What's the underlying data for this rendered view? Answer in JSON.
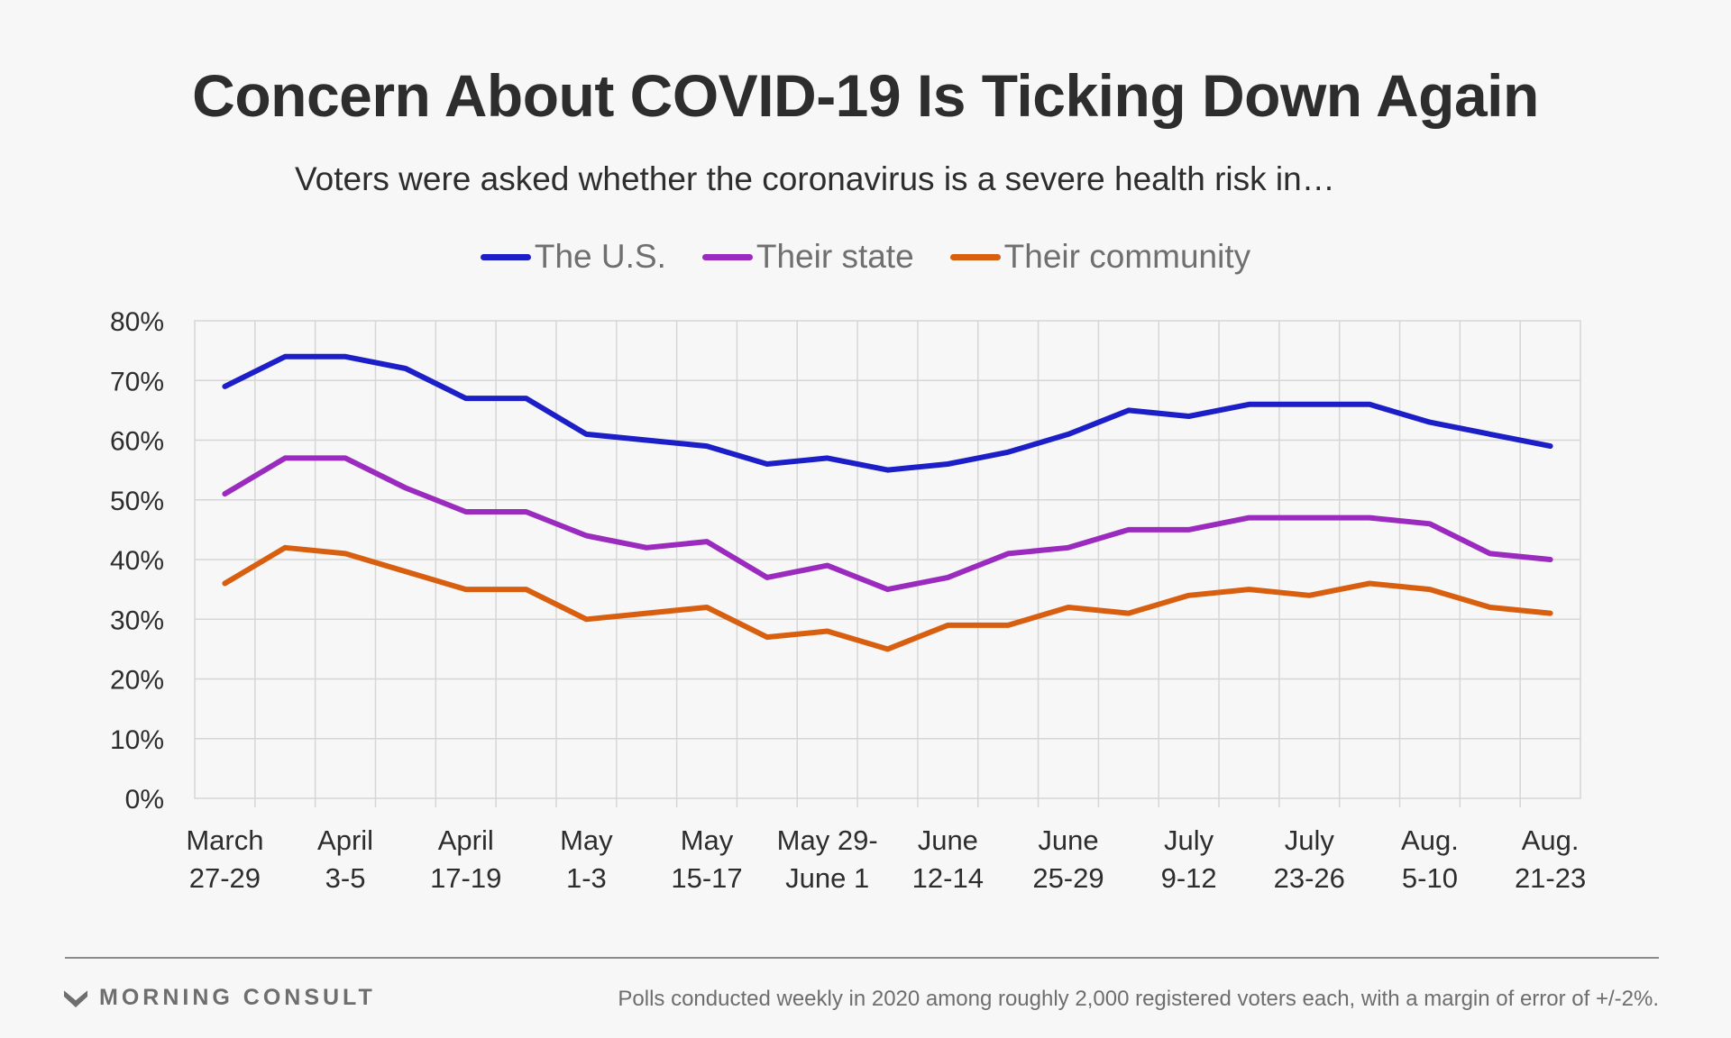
{
  "chart_data": {
    "type": "line",
    "title": "Concern About COVID-19 Is Ticking Down Again",
    "subtitle": "Voters were asked whether the coronavirus is a severe health risk in…",
    "categories": [
      "March 27-29",
      "",
      "April 3-5",
      "",
      "April 17-19",
      "",
      "May 1-3",
      "",
      "May 15-17",
      "",
      "May 29-June 1",
      "",
      "June 12-14",
      "",
      "June 25-29",
      "",
      "July 9-12",
      "",
      "July 23-26",
      "",
      "Aug. 5-10",
      "",
      "Aug. 21-23"
    ],
    "x_tick_labels": [
      [
        "March",
        "27-29"
      ],
      [
        "April",
        "3-5"
      ],
      [
        "April",
        "17-19"
      ],
      [
        "May",
        "1-3"
      ],
      [
        "May",
        "15-17"
      ],
      [
        "May 29-",
        "June 1"
      ],
      [
        "June",
        "12-14"
      ],
      [
        "June",
        "25-29"
      ],
      [
        "July",
        "9-12"
      ],
      [
        "July",
        "23-26"
      ],
      [
        "Aug.",
        "5-10"
      ],
      [
        "Aug.",
        "21-23"
      ]
    ],
    "yticks": [
      "0%",
      "10%",
      "20%",
      "30%",
      "40%",
      "50%",
      "60%",
      "70%",
      "80%"
    ],
    "ylim": [
      0,
      80
    ],
    "grid": true,
    "legend_position": "top",
    "series": [
      {
        "name": "The U.S.",
        "color": "#1c1ec8",
        "values": [
          69,
          74,
          74,
          72,
          67,
          67,
          61,
          60,
          59,
          56,
          57,
          55,
          56,
          58,
          61,
          65,
          64,
          66,
          66,
          66,
          63,
          61,
          59
        ]
      },
      {
        "name": "Their state",
        "color": "#9a2bbe",
        "values": [
          51,
          57,
          57,
          52,
          48,
          48,
          44,
          42,
          43,
          37,
          39,
          35,
          37,
          41,
          42,
          45,
          45,
          47,
          47,
          47,
          46,
          41,
          40
        ]
      },
      {
        "name": "Their community",
        "color": "#d85f10",
        "values": [
          36,
          42,
          41,
          38,
          35,
          35,
          30,
          31,
          32,
          27,
          28,
          25,
          29,
          29,
          32,
          31,
          34,
          35,
          34,
          36,
          35,
          32,
          31
        ]
      }
    ]
  },
  "footer": {
    "brand": "MORNING CONSULT",
    "source": "Polls conducted weekly in 2020 among roughly 2,000 registered voters each, with a margin of error of +/-2%."
  },
  "colors": {
    "background": "#f7f7f7",
    "grid": "#d6d6d6",
    "text": "#2d2d2d",
    "muted": "#6e6e6e"
  },
  "icons": {
    "brand_logo": "morning-consult-chevron-logo"
  }
}
